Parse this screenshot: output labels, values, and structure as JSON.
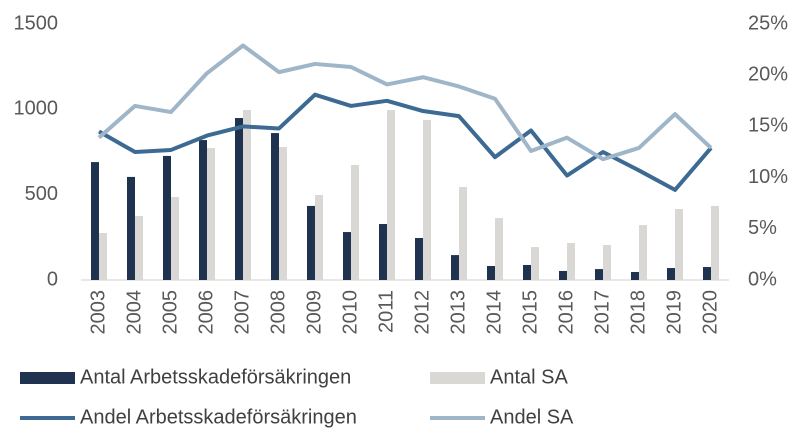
{
  "chart_data": {
    "type": "bar",
    "categories": [
      "2003",
      "2004",
      "2005",
      "2006",
      "2007",
      "2008",
      "2009",
      "2010",
      "2011",
      "2012",
      "2013",
      "2014",
      "2015",
      "2016",
      "2017",
      "2018",
      "2019",
      "2020"
    ],
    "series": [
      {
        "name": "Antal Arbetsskadeförsäkringen",
        "type": "bar",
        "color": "#1f3350",
        "values": [
          691,
          604,
          727,
          820,
          949,
          861,
          434,
          281,
          328,
          246,
          146,
          82,
          88,
          53,
          64,
          47,
          70,
          76
        ]
      },
      {
        "name": "Antal SA",
        "type": "bar",
        "color": "#d9d8d4",
        "values": [
          275,
          375,
          486,
          773,
          996,
          779,
          498,
          674,
          996,
          938,
          545,
          363,
          193,
          217,
          205,
          322,
          416,
          434
        ]
      },
      {
        "name": "Andel Arbetsskadeförsäkringen",
        "type": "line",
        "axis": "y2",
        "color": "#3d6a93",
        "values": [
          14.5,
          12.5,
          12.7,
          14.1,
          15.0,
          14.8,
          18.1,
          17.0,
          17.5,
          16.5,
          16.0,
          12.0,
          14.6,
          10.2,
          12.5,
          10.7,
          8.8,
          12.9
        ]
      },
      {
        "name": "Andel SA",
        "type": "line",
        "axis": "y2",
        "color": "#9fb5c8",
        "values": [
          13.9,
          17.0,
          16.4,
          20.2,
          22.9,
          20.3,
          21.1,
          20.8,
          19.1,
          19.8,
          18.9,
          17.7,
          12.6,
          13.9,
          11.8,
          12.9,
          16.2,
          12.9
        ]
      }
    ],
    "ylim": [
      0,
      1500
    ],
    "yticks": [
      0,
      500,
      1000,
      1500
    ],
    "y2lim": [
      0,
      25
    ],
    "y2ticks": [
      {
        "value": 0,
        "label": "0%"
      },
      {
        "value": 5,
        "label": "5%"
      },
      {
        "value": 10,
        "label": "10%"
      },
      {
        "value": 15,
        "label": "15%"
      },
      {
        "value": 20,
        "label": "20%"
      },
      {
        "value": 25,
        "label": "25%"
      }
    ],
    "grid": false
  }
}
